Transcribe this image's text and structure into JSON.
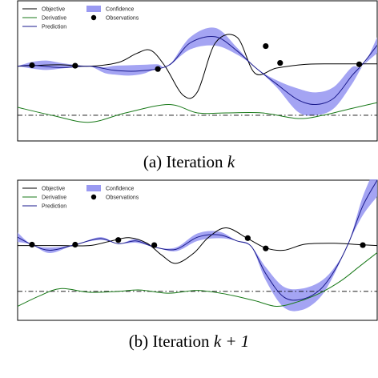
{
  "panels": [
    {
      "caption": "(a) Iteration ",
      "caption_math": "k",
      "legend": [
        "Objective",
        "Derivative",
        "Prediction",
        "Confidence",
        "Observations"
      ]
    },
    {
      "caption": "(b) Iteration ",
      "caption_math": "k + 1",
      "legend": [
        "Objective",
        "Derivative",
        "Prediction",
        "Confidence",
        "Observations"
      ]
    }
  ],
  "colors": {
    "objective": "#000000",
    "derivative": "#1a7a1a",
    "prediction": "#1a1a8c",
    "confidence": "#9a9af2",
    "observations": "#000000",
    "baseline": "#000000"
  },
  "chart_data": [
    {
      "type": "line",
      "title": "",
      "xlabel": "",
      "ylabel": "",
      "xlim": [
        0,
        1
      ],
      "ylim": [
        -1.6,
        1.4
      ],
      "grid": false,
      "legend_position": "top-left",
      "derivative_baseline": -1.05,
      "series": [
        {
          "name": "Objective",
          "x": [
            0,
            0.06,
            0.12,
            0.2,
            0.28,
            0.33,
            0.37,
            0.41,
            0.46,
            0.5,
            0.55,
            0.61,
            0.66,
            0.72,
            0.8,
            0.88,
            0.95,
            1.0
          ],
          "y": [
            0,
            0.02,
            0.03,
            0,
            0.08,
            0.27,
            0.34,
            0,
            -0.62,
            -0.55,
            0.5,
            0.62,
            -0.15,
            -0.04,
            0.04,
            0.05,
            0.05,
            0.05
          ]
        },
        {
          "name": "Derivative",
          "x": [
            0,
            0.1,
            0.2,
            0.3,
            0.42,
            0.5,
            0.58,
            0.68,
            0.78,
            0.85,
            0.92,
            1.0
          ],
          "y": [
            -0.88,
            -1.06,
            -1.2,
            -1.0,
            -0.82,
            -1.0,
            -1.0,
            -1.0,
            -1.12,
            -1.05,
            -0.92,
            -0.78
          ]
        },
        {
          "name": "Prediction",
          "x": [
            0,
            0.04,
            0.12,
            0.2,
            0.27,
            0.34,
            0.42,
            0.48,
            0.55,
            0.61,
            0.66,
            0.72,
            0.78,
            0.83,
            0.88,
            0.93,
            0.96,
            1.0
          ],
          "y": [
            0,
            0.02,
            -0.03,
            0,
            -0.09,
            -0.1,
            0.02,
            0.5,
            0.63,
            0.33,
            -0.02,
            -0.38,
            -0.72,
            -0.82,
            -0.68,
            -0.2,
            0.05,
            0.45
          ]
        },
        {
          "name": "Confidence",
          "x": [
            0,
            0.04,
            0.08,
            0.12,
            0.16,
            0.2,
            0.24,
            0.27,
            0.31,
            0.35,
            0.39,
            0.42,
            0.48,
            0.55,
            0.61,
            0.66,
            0.72,
            0.78,
            0.83,
            0.88,
            0.93,
            0.96,
            1.0
          ],
          "y_low": [
            0,
            -0.05,
            -0.08,
            -0.05,
            -0.02,
            0,
            -0.14,
            -0.18,
            -0.2,
            -0.16,
            -0.04,
            0,
            0.36,
            0.44,
            0.25,
            -0.02,
            -0.45,
            -0.98,
            -1.05,
            -0.9,
            -0.38,
            0,
            0.28
          ],
          "y_high": [
            0,
            0.09,
            0.12,
            0.07,
            0.03,
            0,
            -0.02,
            0.01,
            0.02,
            0.03,
            0.04,
            0,
            0.62,
            0.82,
            0.4,
            -0.02,
            -0.3,
            -0.48,
            -0.56,
            -0.44,
            -0.02,
            0,
            0.62
          ]
        },
        {
          "name": "Observations",
          "x": [
            0.04,
            0.16,
            0.39,
            0.69,
            0.73,
            0.95
          ],
          "y": [
            0.02,
            0.01,
            -0.06,
            0.43,
            0.07,
            0.04
          ]
        }
      ]
    },
    {
      "type": "line",
      "title": "",
      "xlabel": "",
      "ylabel": "",
      "xlim": [
        0,
        1
      ],
      "ylim": [
        -1.6,
        1.4
      ],
      "grid": false,
      "legend_position": "top-left",
      "derivative_baseline": -0.98,
      "series": [
        {
          "name": "Objective",
          "x": [
            0,
            0.06,
            0.12,
            0.2,
            0.26,
            0.31,
            0.36,
            0.4,
            0.44,
            0.49,
            0.53,
            0.58,
            0.64,
            0.69,
            0.74,
            0.8,
            0.88,
            0.95,
            1.0
          ],
          "y": [
            0,
            0,
            0,
            0,
            0.1,
            0.17,
            0.05,
            -0.2,
            -0.38,
            -0.16,
            0.17,
            0.38,
            0.15,
            -0.05,
            -0.1,
            0.03,
            0.05,
            0.02,
            0
          ],
          "_note": ""
        },
        {
          "name": "Derivative",
          "x": [
            0,
            0.06,
            0.12,
            0.2,
            0.28,
            0.34,
            0.42,
            0.5,
            0.58,
            0.66,
            0.72,
            0.78,
            0.84,
            0.9,
            0.95,
            1.0
          ],
          "y": [
            -1.3,
            -1.08,
            -0.92,
            -1.0,
            -0.98,
            -0.95,
            -1.02,
            -0.96,
            -1.04,
            -1.18,
            -1.3,
            -1.2,
            -1.02,
            -0.75,
            -0.45,
            -0.15
          ]
        },
        {
          "name": "Prediction",
          "x": [
            0,
            0.04,
            0.09,
            0.16,
            0.23,
            0.28,
            0.33,
            0.38,
            0.44,
            0.5,
            0.56,
            0.61,
            0.65,
            0.69,
            0.74,
            0.79,
            0.84,
            0.88,
            0.92,
            0.96,
            1.0
          ],
          "y": [
            0.18,
            0.02,
            -0.1,
            0.02,
            0.15,
            0.04,
            0.1,
            -0.03,
            -0.08,
            0.18,
            0.23,
            0.1,
            -0.02,
            -0.6,
            -1.1,
            -1.15,
            -0.95,
            -0.55,
            0.05,
            0.85,
            1.4
          ]
        },
        {
          "name": "Confidence",
          "x": [
            0,
            0.04,
            0.09,
            0.16,
            0.23,
            0.28,
            0.33,
            0.38,
            0.44,
            0.5,
            0.56,
            0.61,
            0.65,
            0.69,
            0.74,
            0.79,
            0.84,
            0.88,
            0.92,
            0.96,
            1.0
          ],
          "y_low": [
            0.08,
            0.02,
            -0.16,
            0.02,
            0.12,
            0.04,
            0.06,
            -0.03,
            -0.12,
            0.1,
            0.16,
            0.1,
            -0.02,
            -0.74,
            -1.32,
            -1.38,
            -1.12,
            -0.62,
            0.05,
            0.65,
            1.05
          ],
          "y_high": [
            0.28,
            0.02,
            -0.04,
            0.02,
            0.18,
            0.04,
            0.14,
            -0.03,
            -0.04,
            0.26,
            0.3,
            0.1,
            -0.02,
            -0.46,
            -0.88,
            -0.92,
            -0.78,
            -0.48,
            0.05,
            1.05,
            1.75
          ]
        },
        {
          "name": "Observations",
          "x": [
            0.04,
            0.16,
            0.28,
            0.38,
            0.64,
            0.69,
            0.96
          ],
          "y": [
            0.02,
            0.02,
            0.12,
            0.01,
            0.16,
            -0.06,
            0.01
          ]
        }
      ]
    }
  ]
}
